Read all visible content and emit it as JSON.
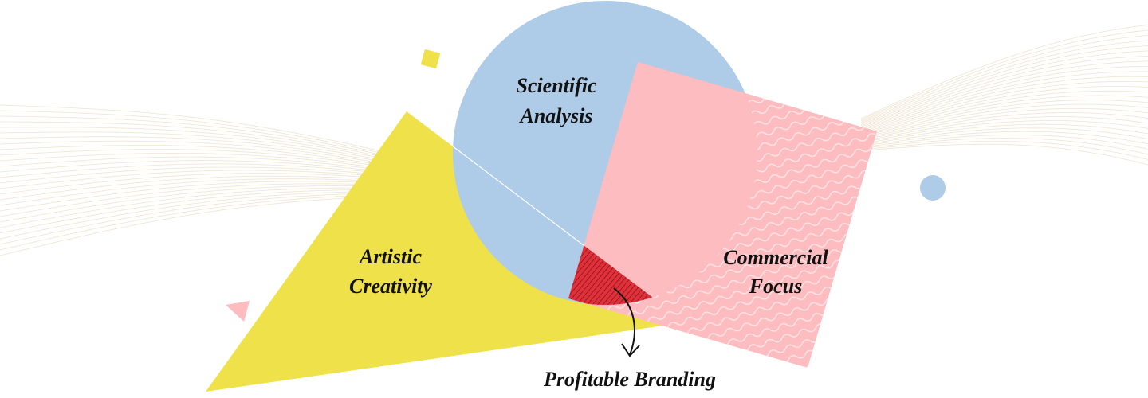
{
  "nodes": [
    {
      "label_lines": [
        "Scientific",
        "Analysis"
      ]
    },
    {
      "label_lines": [
        "Artistic",
        "Creativity"
      ]
    },
    {
      "label_lines": [
        "Commercial",
        "Focus"
      ]
    }
  ],
  "intersection": {
    "label": "Profitable Branding"
  }
}
